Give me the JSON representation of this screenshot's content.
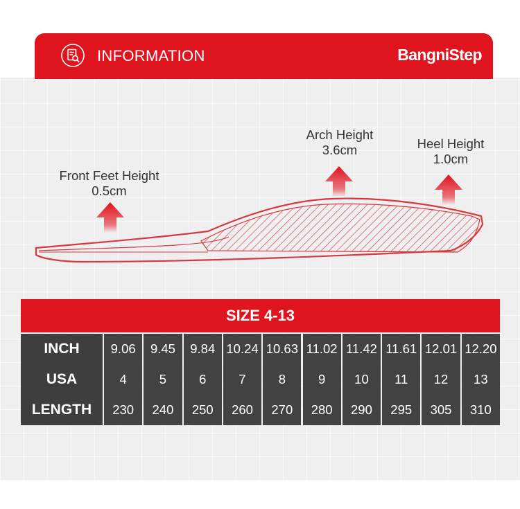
{
  "header": {
    "title": "INFORMATION",
    "brand": "BangniStep",
    "icon": "document-search-icon",
    "accent": "#e0141e"
  },
  "insole": {
    "front": {
      "label": "Front Feet Height",
      "value": "0.5cm"
    },
    "arch": {
      "label": "Arch Height",
      "value": "3.6cm"
    },
    "heel": {
      "label": "Heel Height",
      "value": "1.0cm"
    },
    "arrow_icon": "arrow-up-icon"
  },
  "size_table": {
    "title": "SIZE 4-13",
    "rows": [
      {
        "label": "INCH",
        "values": [
          "9.06",
          "9.45",
          "9.84",
          "10.24",
          "10.63",
          "11.02",
          "11.42",
          "11.61",
          "12.01",
          "12.20"
        ]
      },
      {
        "label": "USA",
        "values": [
          "4",
          "5",
          "6",
          "7",
          "8",
          "9",
          "10",
          "11",
          "12",
          "13"
        ]
      },
      {
        "label": "LENGTH",
        "values": [
          "230",
          "240",
          "250",
          "260",
          "270",
          "280",
          "290",
          "295",
          "305",
          "310"
        ]
      }
    ]
  }
}
